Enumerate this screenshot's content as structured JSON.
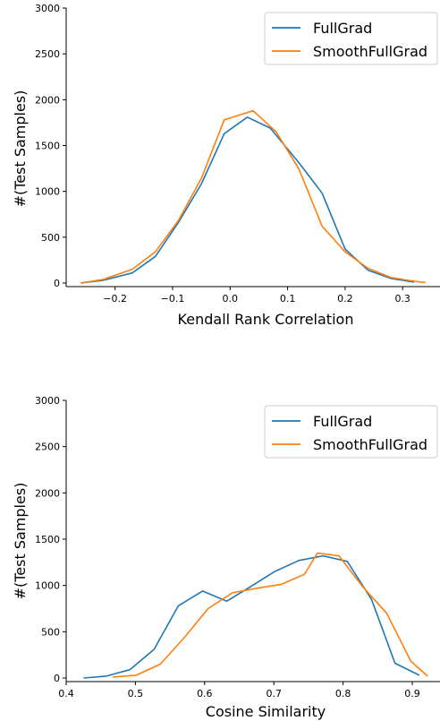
{
  "colors": {
    "fullgrad": "#1f77b4",
    "smoothfullgrad": "#ff7f0e"
  },
  "chart_data": [
    {
      "type": "line",
      "xlabel": "Kendall Rank Correlation",
      "ylabel": "#(Test Samples)",
      "xlim": [
        -0.285,
        0.365
      ],
      "ylim": [
        0,
        3000
      ],
      "xticks": [
        -0.2,
        -0.1,
        0.0,
        0.1,
        0.2,
        0.3
      ],
      "xtick_labels": [
        "−0.2",
        "−0.1",
        "0.0",
        "0.1",
        "0.2",
        "0.3"
      ],
      "yticks": [
        0,
        500,
        1000,
        1500,
        2000,
        2500,
        3000
      ],
      "ytick_labels": [
        "0",
        "500",
        "1000",
        "1500",
        "2000",
        "2500",
        "3000"
      ],
      "legend": "top-right",
      "series": [
        {
          "name": "FullGrad",
          "color_key": "fullgrad",
          "x": [
            -0.26,
            -0.22,
            -0.17,
            -0.13,
            -0.09,
            -0.05,
            -0.01,
            0.03,
            0.07,
            0.12,
            0.16,
            0.2,
            0.24,
            0.28,
            0.32
          ],
          "y": [
            0,
            30,
            110,
            290,
            660,
            1080,
            1630,
            1810,
            1690,
            1310,
            980,
            370,
            140,
            50,
            10
          ]
        },
        {
          "name": "SmoothFullGrad",
          "color_key": "smoothfullgrad",
          "x": [
            -0.26,
            -0.22,
            -0.17,
            -0.13,
            -0.09,
            -0.05,
            -0.01,
            0.04,
            0.08,
            0.12,
            0.16,
            0.2,
            0.24,
            0.28,
            0.32,
            0.34
          ],
          "y": [
            0,
            40,
            150,
            340,
            680,
            1140,
            1780,
            1880,
            1650,
            1240,
            620,
            340,
            160,
            60,
            20,
            5
          ]
        }
      ]
    },
    {
      "type": "line",
      "xlabel": "Cosine Similarity",
      "ylabel": "#(Test Samples)",
      "xlim": [
        0.4,
        0.94
      ],
      "ylim": [
        0,
        3000
      ],
      "xticks": [
        0.4,
        0.5,
        0.6,
        0.7,
        0.8,
        0.9
      ],
      "xtick_labels": [
        "0.4",
        "0.5",
        "0.6",
        "0.7",
        "0.8",
        "0.9"
      ],
      "yticks": [
        0,
        500,
        1000,
        1500,
        2000,
        2500,
        3000
      ],
      "ytick_labels": [
        "0",
        "500",
        "1000",
        "1500",
        "2000",
        "2500",
        "3000"
      ],
      "legend": "top-right",
      "series": [
        {
          "name": "FullGrad",
          "color_key": "fullgrad",
          "x": [
            0.425,
            0.458,
            0.492,
            0.527,
            0.562,
            0.597,
            0.632,
            0.667,
            0.701,
            0.736,
            0.771,
            0.806,
            0.841,
            0.875,
            0.91
          ],
          "y": [
            0,
            20,
            90,
            310,
            780,
            940,
            830,
            990,
            1150,
            1270,
            1320,
            1260,
            850,
            160,
            30
          ]
        },
        {
          "name": "SmoothFullGrad",
          "color_key": "smoothfullgrad",
          "x": [
            0.467,
            0.501,
            0.536,
            0.571,
            0.605,
            0.64,
            0.675,
            0.71,
            0.744,
            0.763,
            0.794,
            0.829,
            0.863,
            0.898,
            0.922
          ],
          "y": [
            10,
            30,
            150,
            440,
            750,
            920,
            970,
            1010,
            1120,
            1350,
            1320,
            980,
            700,
            180,
            20
          ]
        }
      ]
    }
  ]
}
